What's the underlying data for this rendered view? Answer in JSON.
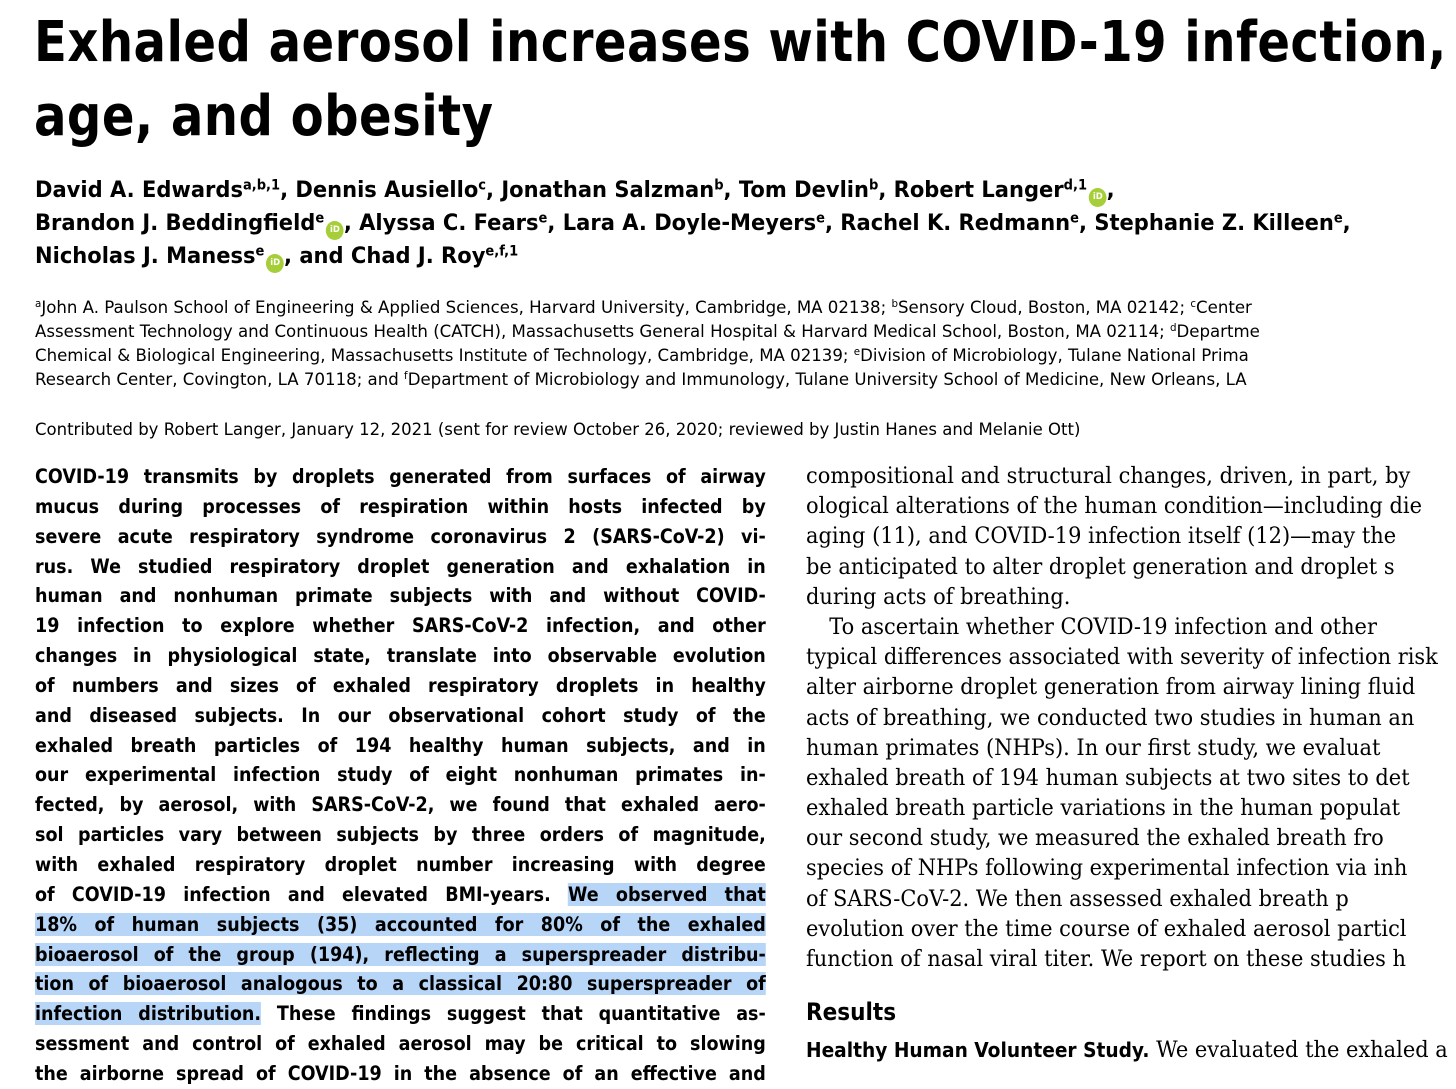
{
  "title": {
    "line1": "Exhaled aerosol increases with COVID-19 infection,",
    "line2": "age, and obesity"
  },
  "authors": [
    {
      "name": "David A. Edwards",
      "sup": "a,b,1"
    },
    {
      "name": "Dennis Ausiello",
      "sup": "c"
    },
    {
      "name": "Jonathan Salzman",
      "sup": "b"
    },
    {
      "name": "Tom Devlin",
      "sup": "b"
    },
    {
      "name": "Robert Langer",
      "sup": "d,1"
    },
    {
      "name": "Brandon J. Beddingfield",
      "sup": "e"
    },
    {
      "name": "Alyssa C. Fears",
      "sup": "e"
    },
    {
      "name": "Lara A. Doyle-Meyers",
      "sup": "e"
    },
    {
      "name": "Rachel K. Redmann",
      "sup": "e"
    },
    {
      "name": "Stephanie Z. Killeen",
      "sup": "e"
    },
    {
      "name": "Nicholas J. Maness",
      "sup": "e"
    },
    {
      "name": "Chad J. Roy",
      "sup": "e,f,1"
    }
  ],
  "author_sep": {
    "comma": ", ",
    "and": ", and "
  },
  "orcid_glyph": "iD",
  "affiliations": {
    "a_sup": "a",
    "a": "John A. Paulson School of Engineering & Applied Sciences, Harvard University, Cambridge, MA 02138; ",
    "b_sup": "b",
    "b": "Sensory Cloud, Boston, MA 02142; ",
    "c_sup": "c",
    "c_line1": "Center",
    "c_line2": "Assessment Technology and Continuous Health (CATCH), Massachusetts General Hospital & Harvard Medical School, Boston, MA 02114; ",
    "d_sup": "d",
    "d_line2": "Departme",
    "d_line3": "Chemical & Biological Engineering, Massachusetts Institute of Technology, Cambridge, MA 02139; ",
    "e_sup": "e",
    "e_line3": "Division of Microbiology, Tulane National Prima",
    "e_line4": "Research Center, Covington, LA 70118; and ",
    "f_sup": "f",
    "f_line4": "Department of Microbiology and Immunology, Tulane University School of Medicine, New Orleans, LA"
  },
  "contributed": "Contributed by Robert Langer, January 12, 2021 (sent for review October 26, 2020; reviewed by Justin Hanes and Melanie Ott)",
  "abstract": {
    "lines": [
      "COVID-19 transmits by droplets generated from surfaces of airway",
      "mucus during processes of respiration within hosts infected by",
      "severe acute respiratory syndrome coronavirus 2 (SARS-CoV-2) vi-",
      "rus. We studied respiratory droplet generation and exhalation in",
      "human and nonhuman primate subjects with and without COVID-",
      "19 infection to explore whether SARS-CoV-2 infection, and other",
      "changes in physiological state, translate into observable evolution",
      "of numbers and sizes of exhaled respiratory droplets in healthy",
      "and diseased subjects. In our observational cohort study of the",
      "exhaled breath particles of 194 healthy human subjects, and in",
      "our experimental infection study of eight nonhuman primates in-",
      "fected, by aerosol, with SARS-CoV-2, we found that exhaled aero-",
      "sol particles vary between subjects by three orders of magnitude,",
      "with exhaled respiratory droplet number increasing with degree"
    ],
    "line15_pre": "of COVID-19 infection and elevated BMI-years. ",
    "line15_hl": "We observed that",
    "hl_lines": [
      "18% of human subjects (35) accounted for 80% of the exhaled",
      "bioaerosol of the group (194), reflecting a superspreader distribu-",
      "tion of bioaerosol analogous to a classical 20:80 superspreader of"
    ],
    "line19_hl": "infection distribution.",
    "line19_post": " These findings suggest that quantitative as-",
    "line20": "sessment and control of exhaled aerosol may be critical to slowing",
    "line21": "the airborne spread of COVID-19 in the absence of an effective and"
  },
  "body": {
    "lines": [
      "compositional and structural changes, driven, in part, by",
      "ological alterations of the human condition—including die",
      "aging (11), and COVID-19 infection itself (12)—may the",
      "be anticipated to alter droplet generation and droplet s",
      "during acts of breathing."
    ],
    "para2_first": "To ascertain whether COVID-19 infection and other",
    "para2_lines": [
      "typical differences associated with severity of infection risk",
      "alter airborne droplet generation from airway lining fluid",
      "acts of breathing, we conducted two studies in human an",
      "human primates (NHPs). In our first study, we evaluat",
      "exhaled breath of 194 human subjects at two sites to det",
      "exhaled breath particle variations in the human populat",
      "our second study, we measured the exhaled breath fro",
      "species of NHPs following experimental infection via inh",
      "of SARS-CoV-2. We then assessed exhaled breath p",
      "evolution over the time course of exhaled aerosol particl",
      "function of nasal viral titer. We report on these studies h"
    ]
  },
  "results_heading": "Results",
  "subsection": {
    "heading": "Healthy Human Volunteer Study.",
    "text": " We evaluated the exhaled a"
  }
}
